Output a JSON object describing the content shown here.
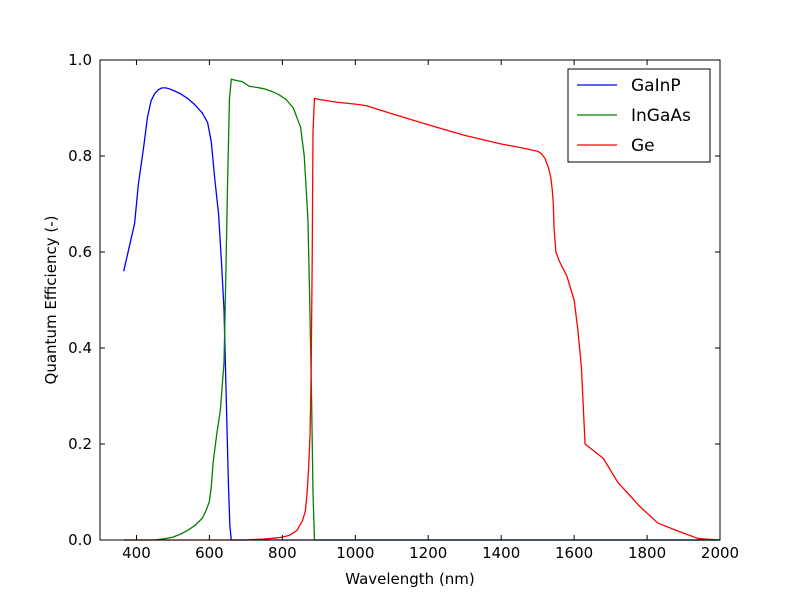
{
  "chart_data": {
    "type": "line",
    "xlabel": "Wavelength (nm)",
    "ylabel": "Quantum Efficiency (-)",
    "xlim": [
      300,
      2000
    ],
    "ylim": [
      0.0,
      1.0
    ],
    "xticks": [
      400,
      600,
      800,
      1000,
      1200,
      1400,
      1600,
      1800,
      2000
    ],
    "yticks": [
      0.0,
      0.2,
      0.4,
      0.6,
      0.8,
      1.0
    ],
    "xtick_labels": [
      "400",
      "600",
      "800",
      "1000",
      "1200",
      "1400",
      "1600",
      "1800",
      "2000"
    ],
    "ytick_labels": [
      "0.0",
      "0.2",
      "0.4",
      "0.6",
      "0.8",
      "1.0"
    ],
    "grid": false,
    "legend_position": "top-right",
    "series": [
      {
        "name": "GaInP",
        "color": "#0000ff",
        "x": [
          365,
          380,
          395,
          405,
          420,
          430,
          440,
          450,
          460,
          470,
          480,
          490,
          500,
          520,
          540,
          560,
          580,
          595,
          605,
          615,
          625,
          633,
          640,
          646,
          652,
          656,
          660,
          2000
        ],
        "y": [
          0.56,
          0.61,
          0.66,
          0.74,
          0.82,
          0.88,
          0.915,
          0.93,
          0.938,
          0.942,
          0.942,
          0.94,
          0.937,
          0.93,
          0.92,
          0.907,
          0.89,
          0.87,
          0.83,
          0.75,
          0.68,
          0.58,
          0.48,
          0.3,
          0.12,
          0.03,
          0.0,
          0.0
        ]
      },
      {
        "name": "InGaAs",
        "color": "#008000",
        "x": [
          365,
          450,
          480,
          500,
          520,
          540,
          560,
          580,
          590,
          600,
          605,
          610,
          620,
          630,
          640,
          645,
          650,
          655,
          660,
          670,
          690,
          700,
          710,
          730,
          750,
          770,
          790,
          810,
          830,
          850,
          860,
          870,
          875,
          880,
          884,
          888,
          2000
        ],
        "y": [
          0.0,
          0.0,
          0.003,
          0.006,
          0.012,
          0.02,
          0.03,
          0.045,
          0.06,
          0.08,
          0.11,
          0.16,
          0.22,
          0.27,
          0.37,
          0.55,
          0.75,
          0.92,
          0.96,
          0.958,
          0.955,
          0.95,
          0.945,
          0.943,
          0.94,
          0.935,
          0.928,
          0.918,
          0.9,
          0.86,
          0.8,
          0.67,
          0.5,
          0.3,
          0.1,
          0.0,
          0.0
        ]
      },
      {
        "name": "Ge",
        "color": "#ff0000",
        "x": [
          365,
          700,
          750,
          780,
          800,
          820,
          840,
          855,
          863,
          868,
          872,
          876,
          879,
          882,
          884,
          888,
          900,
          950,
          1000,
          1030,
          1100,
          1200,
          1300,
          1400,
          1450,
          1500,
          1510,
          1520,
          1530,
          1536,
          1540,
          1543,
          1545,
          1550,
          1560,
          1580,
          1600,
          1610,
          1620,
          1630,
          1680,
          1720,
          1780,
          1830,
          1880,
          1940,
          2000
        ],
        "y": [
          0.0,
          0.0,
          0.002,
          0.004,
          0.006,
          0.01,
          0.02,
          0.04,
          0.06,
          0.1,
          0.15,
          0.22,
          0.35,
          0.6,
          0.85,
          0.92,
          0.918,
          0.912,
          0.908,
          0.905,
          0.888,
          0.865,
          0.843,
          0.825,
          0.818,
          0.81,
          0.805,
          0.795,
          0.775,
          0.755,
          0.73,
          0.7,
          0.65,
          0.6,
          0.58,
          0.55,
          0.5,
          0.44,
          0.36,
          0.2,
          0.17,
          0.12,
          0.07,
          0.035,
          0.02,
          0.003,
          0.0
        ]
      }
    ]
  }
}
